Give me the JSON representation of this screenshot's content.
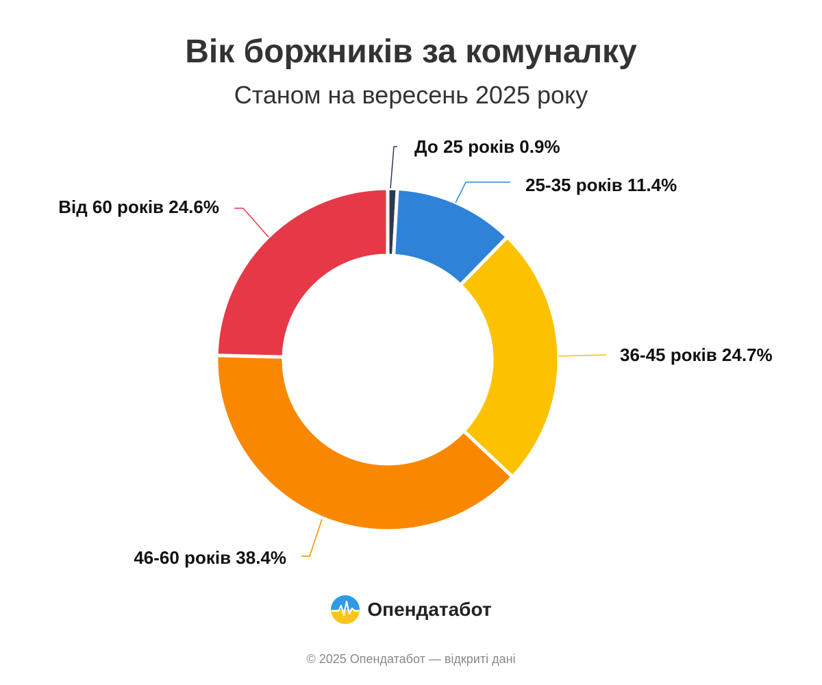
{
  "header": {
    "title": "Вік боржників за комуналку",
    "subtitle": "Станом на вересень 2025 року"
  },
  "chart_data": {
    "type": "pie",
    "donut": true,
    "title": "Вік боржників за комуналку",
    "subtitle": "Станом на вересень 2025 року",
    "slices": [
      {
        "name": "До 25 років",
        "value": 0.9,
        "label": "До 25 років 0.9%",
        "color": "#2b3a4f"
      },
      {
        "name": "25-35 років",
        "value": 11.4,
        "label": "25-35 років 11.4%",
        "color": "#2e82d8"
      },
      {
        "name": "36-45 років",
        "value": 24.7,
        "label": "36-45 років 24.7%",
        "color": "#fcc200"
      },
      {
        "name": "46-60 років",
        "value": 38.4,
        "label": "46-60 років 38.4%",
        "color": "#fa8700"
      },
      {
        "name": "Від 60 років",
        "value": 24.6,
        "label": "Від 60 років 24.6%",
        "color": "#e53947"
      }
    ],
    "legend": "none"
  },
  "branding": {
    "logo_text": "Опендатабот"
  },
  "footer": {
    "text": "© 2025 Опендатабот — відкриті дані"
  }
}
